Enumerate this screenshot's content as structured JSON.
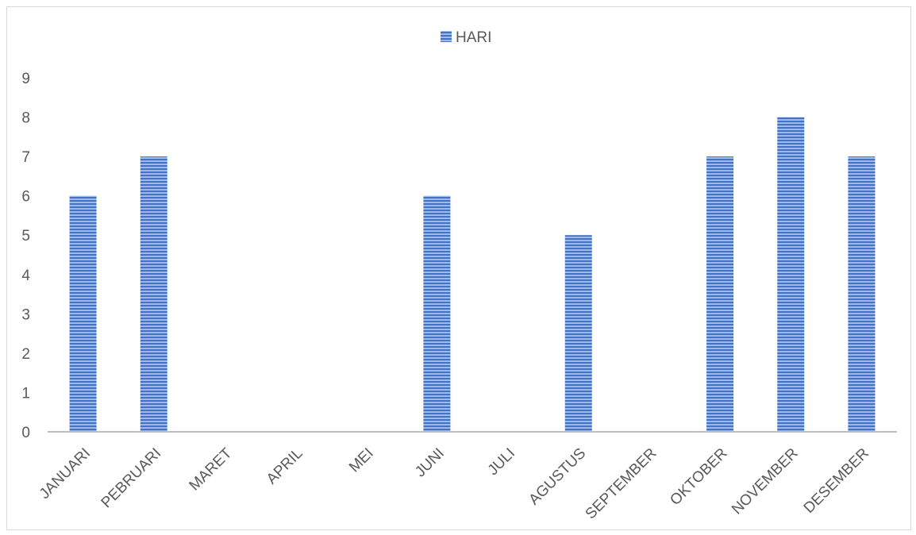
{
  "chart_data": {
    "type": "bar",
    "categories": [
      "JANUARI",
      "PEBRUARI",
      "MARET",
      "APRIL",
      "MEI",
      "JUNI",
      "JULI",
      "AGUSTUS",
      "SEPTEMBER",
      "OKTOBER",
      "NOVEMBER",
      "DESEMBER"
    ],
    "series": [
      {
        "name": "HARI",
        "values": [
          6,
          7,
          0,
          0,
          0,
          6,
          0,
          5,
          0,
          7,
          8,
          7
        ],
        "color": "#4472c4"
      }
    ],
    "title": "",
    "xlabel": "",
    "ylabel": "",
    "ylim": [
      0,
      9
    ],
    "yticks": [
      "0",
      "1",
      "2",
      "3",
      "4",
      "5",
      "6",
      "7",
      "8",
      "9"
    ],
    "grid": false,
    "legend_position": "top",
    "bar_pattern": "horizontal-stripes"
  }
}
